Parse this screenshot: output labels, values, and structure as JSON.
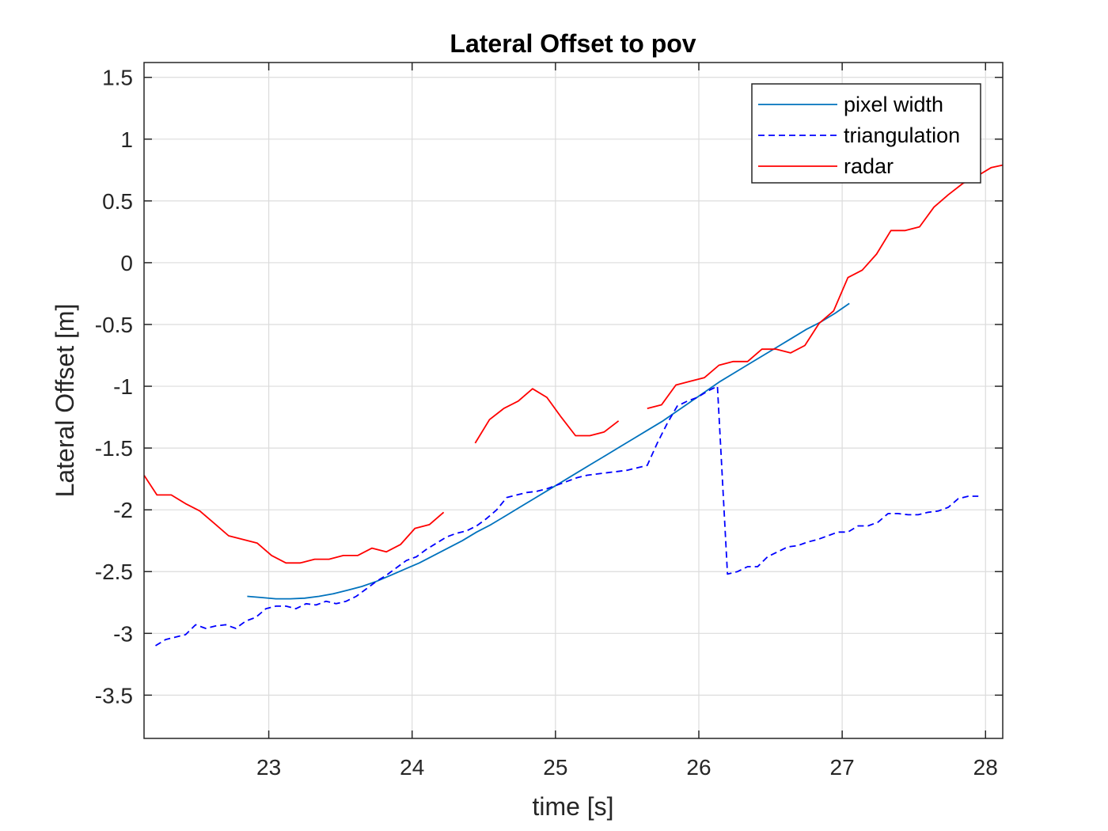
{
  "chart_data": {
    "type": "line",
    "title": "Lateral Offset to pov",
    "xlabel": "time [s]",
    "ylabel": "Lateral Offset [m]",
    "xlim": [
      22.13,
      28.12
    ],
    "ylim": [
      -3.85,
      1.62
    ],
    "xticks": [
      23,
      24,
      25,
      26,
      27,
      28
    ],
    "yticks": [
      1.5,
      1,
      0.5,
      0,
      -0.5,
      -1,
      -1.5,
      -2,
      -2.5,
      -3,
      -3.5
    ],
    "xtick_labels": [
      "23",
      "24",
      "25",
      "26",
      "27",
      "28"
    ],
    "ytick_labels": [
      "1.5",
      "1",
      "0.5",
      "0",
      "-0.5",
      "-1",
      "-1.5",
      "-2",
      "-2.5",
      "-3",
      "-3.5"
    ],
    "grid": true,
    "legend_position": "top-right",
    "series": [
      {
        "name": "pixel width",
        "color": "#0072BD",
        "style": "solid",
        "segments": [
          [
            [
              22.85,
              -2.7
            ],
            [
              22.95,
              -2.71
            ],
            [
              23.05,
              -2.72
            ],
            [
              23.15,
              -2.72
            ],
            [
              23.25,
              -2.715
            ],
            [
              23.35,
              -2.7
            ],
            [
              23.45,
              -2.68
            ],
            [
              23.55,
              -2.65
            ],
            [
              23.65,
              -2.62
            ],
            [
              23.75,
              -2.58
            ],
            [
              23.85,
              -2.53
            ],
            [
              23.95,
              -2.48
            ],
            [
              24.05,
              -2.43
            ],
            [
              24.15,
              -2.37
            ],
            [
              24.25,
              -2.31
            ],
            [
              24.35,
              -2.25
            ],
            [
              24.45,
              -2.18
            ],
            [
              24.55,
              -2.12
            ],
            [
              24.65,
              -2.05
            ],
            [
              24.75,
              -1.98
            ],
            [
              24.85,
              -1.91
            ],
            [
              24.95,
              -1.84
            ],
            [
              25.05,
              -1.77
            ],
            [
              25.15,
              -1.7
            ],
            [
              25.25,
              -1.63
            ],
            [
              25.35,
              -1.56
            ],
            [
              25.45,
              -1.49
            ],
            [
              25.55,
              -1.42
            ],
            [
              25.65,
              -1.35
            ],
            [
              25.75,
              -1.28
            ],
            [
              25.85,
              -1.2
            ],
            [
              25.95,
              -1.12
            ],
            [
              26.05,
              -1.04
            ],
            [
              26.15,
              -0.96
            ],
            [
              26.25,
              -0.89
            ],
            [
              26.35,
              -0.82
            ],
            [
              26.45,
              -0.75
            ],
            [
              26.55,
              -0.68
            ],
            [
              26.65,
              -0.61
            ],
            [
              26.75,
              -0.54
            ],
            [
              26.85,
              -0.48
            ],
            [
              26.95,
              -0.41
            ],
            [
              27.05,
              -0.33
            ]
          ]
        ]
      },
      {
        "name": "triangulation",
        "color": "#0000FF",
        "style": "dashed",
        "segments": [
          [
            [
              22.21,
              -3.1
            ],
            [
              22.28,
              -3.05
            ],
            [
              22.35,
              -3.03
            ],
            [
              22.42,
              -3.01
            ],
            [
              22.49,
              -2.93
            ],
            [
              22.56,
              -2.96
            ],
            [
              22.63,
              -2.94
            ],
            [
              22.7,
              -2.93
            ],
            [
              22.77,
              -2.96
            ],
            [
              22.84,
              -2.9
            ],
            [
              22.91,
              -2.87
            ],
            [
              22.98,
              -2.8
            ],
            [
              23.05,
              -2.78
            ],
            [
              23.12,
              -2.78
            ],
            [
              23.19,
              -2.8
            ],
            [
              23.26,
              -2.76
            ],
            [
              23.33,
              -2.77
            ],
            [
              23.4,
              -2.74
            ],
            [
              23.47,
              -2.76
            ],
            [
              23.54,
              -2.74
            ],
            [
              23.61,
              -2.7
            ],
            [
              23.68,
              -2.64
            ],
            [
              23.75,
              -2.58
            ],
            [
              23.82,
              -2.53
            ],
            [
              23.89,
              -2.47
            ],
            [
              23.96,
              -2.41
            ],
            [
              24.03,
              -2.38
            ],
            [
              24.1,
              -2.32
            ],
            [
              24.17,
              -2.27
            ],
            [
              24.24,
              -2.22
            ],
            [
              24.31,
              -2.19
            ],
            [
              24.38,
              -2.17
            ],
            [
              24.45,
              -2.13
            ],
            [
              24.52,
              -2.07
            ],
            [
              24.59,
              -2.0
            ],
            [
              24.66,
              -1.9
            ],
            [
              24.73,
              -1.88
            ],
            [
              24.8,
              -1.86
            ],
            [
              24.87,
              -1.85
            ],
            [
              24.94,
              -1.83
            ],
            [
              25.01,
              -1.8
            ],
            [
              25.08,
              -1.77
            ],
            [
              25.15,
              -1.74
            ],
            [
              25.22,
              -1.72
            ],
            [
              25.29,
              -1.71
            ],
            [
              25.36,
              -1.7
            ],
            [
              25.43,
              -1.69
            ],
            [
              25.5,
              -1.68
            ],
            [
              25.57,
              -1.66
            ],
            [
              25.64,
              -1.64
            ],
            [
              25.71,
              -1.46
            ],
            [
              25.78,
              -1.3
            ],
            [
              25.85,
              -1.16
            ],
            [
              25.92,
              -1.12
            ],
            [
              25.99,
              -1.09
            ],
            [
              26.06,
              -1.04
            ],
            [
              26.13,
              -1.0
            ],
            [
              26.2,
              -2.52
            ],
            [
              26.27,
              -2.5
            ],
            [
              26.34,
              -2.46
            ],
            [
              26.41,
              -2.46
            ],
            [
              26.48,
              -2.38
            ],
            [
              26.55,
              -2.34
            ],
            [
              26.62,
              -2.3
            ],
            [
              26.69,
              -2.29
            ],
            [
              26.76,
              -2.26
            ],
            [
              26.83,
              -2.24
            ],
            [
              26.9,
              -2.21
            ],
            [
              26.97,
              -2.18
            ],
            [
              27.04,
              -2.18
            ],
            [
              27.11,
              -2.13
            ],
            [
              27.18,
              -2.13
            ],
            [
              27.25,
              -2.1
            ],
            [
              27.32,
              -2.03
            ],
            [
              27.39,
              -2.03
            ],
            [
              27.46,
              -2.04
            ],
            [
              27.53,
              -2.04
            ],
            [
              27.6,
              -2.02
            ],
            [
              27.67,
              -2.01
            ],
            [
              27.74,
              -1.98
            ],
            [
              27.81,
              -1.91
            ],
            [
              27.88,
              -1.89
            ],
            [
              27.95,
              -1.89
            ]
          ]
        ]
      },
      {
        "name": "radar",
        "color": "#FF0000",
        "style": "solid",
        "segments": [
          [
            [
              22.13,
              -1.72
            ],
            [
              22.22,
              -1.88
            ],
            [
              22.32,
              -1.88
            ],
            [
              22.42,
              -1.95
            ],
            [
              22.52,
              -2.01
            ],
            [
              22.62,
              -2.11
            ],
            [
              22.72,
              -2.21
            ],
            [
              22.82,
              -2.24
            ],
            [
              22.92,
              -2.27
            ],
            [
              23.02,
              -2.37
            ],
            [
              23.12,
              -2.43
            ],
            [
              23.22,
              -2.43
            ],
            [
              23.32,
              -2.4
            ],
            [
              23.42,
              -2.4
            ],
            [
              23.52,
              -2.37
            ],
            [
              23.62,
              -2.37
            ],
            [
              23.72,
              -2.31
            ],
            [
              23.82,
              -2.34
            ],
            [
              23.92,
              -2.28
            ],
            [
              24.02,
              -2.15
            ],
            [
              24.12,
              -2.12
            ],
            [
              24.22,
              -2.02
            ]
          ],
          [
            [
              24.44,
              -1.46
            ],
            [
              24.54,
              -1.27
            ],
            [
              24.64,
              -1.18
            ],
            [
              24.74,
              -1.12
            ],
            [
              24.84,
              -1.02
            ],
            [
              24.94,
              -1.09
            ],
            [
              25.04,
              -1.25
            ],
            [
              25.14,
              -1.4
            ],
            [
              25.24,
              -1.4
            ],
            [
              25.34,
              -1.37
            ],
            [
              25.44,
              -1.28
            ]
          ],
          [
            [
              25.64,
              -1.18
            ],
            [
              25.74,
              -1.15
            ],
            [
              25.84,
              -0.99
            ],
            [
              25.94,
              -0.96
            ],
            [
              26.04,
              -0.93
            ],
            [
              26.14,
              -0.83
            ],
            [
              26.24,
              -0.8
            ],
            [
              26.34,
              -0.8
            ],
            [
              26.44,
              -0.7
            ],
            [
              26.54,
              -0.7
            ],
            [
              26.64,
              -0.73
            ],
            [
              26.74,
              -0.67
            ],
            [
              26.84,
              -0.49
            ],
            [
              26.94,
              -0.39
            ],
            [
              27.04,
              -0.12
            ],
            [
              27.14,
              -0.06
            ],
            [
              27.24,
              0.07
            ],
            [
              27.34,
              0.26
            ],
            [
              27.44,
              0.26
            ],
            [
              27.54,
              0.29
            ],
            [
              27.64,
              0.45
            ],
            [
              27.74,
              0.55
            ],
            [
              27.84,
              0.64
            ],
            [
              27.94,
              0.7
            ],
            [
              28.04,
              0.77
            ],
            [
              28.12,
              0.79
            ]
          ]
        ]
      }
    ]
  }
}
